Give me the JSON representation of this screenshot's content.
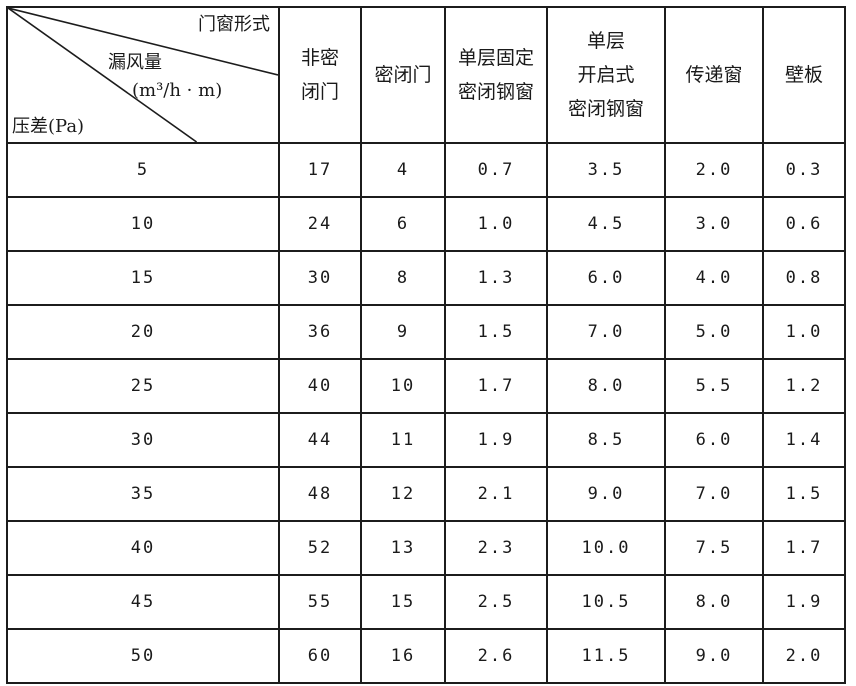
{
  "table": {
    "corner": {
      "form_label": "门窗形式",
      "leak_label": "漏风量",
      "unit_label": "(m³/h · m)",
      "pressure_label": "压差(Pa)"
    },
    "headers": [
      [
        "非密",
        "闭门"
      ],
      [
        "密闭门"
      ],
      [
        "单层固定",
        "密闭钢窗"
      ],
      [
        "单层",
        "开启式",
        "密闭钢窗"
      ],
      [
        "传递窗"
      ],
      [
        "壁板"
      ]
    ],
    "rows": [
      {
        "pressure": "5",
        "values": [
          "17",
          "4",
          "0.7",
          "3.5",
          "2.0",
          "0.3"
        ]
      },
      {
        "pressure": "10",
        "values": [
          "24",
          "6",
          "1.0",
          "4.5",
          "3.0",
          "0.6"
        ]
      },
      {
        "pressure": "15",
        "values": [
          "30",
          "8",
          "1.3",
          "6.0",
          "4.0",
          "0.8"
        ]
      },
      {
        "pressure": "20",
        "values": [
          "36",
          "9",
          "1.5",
          "7.0",
          "5.0",
          "1.0"
        ]
      },
      {
        "pressure": "25",
        "values": [
          "40",
          "10",
          "1.7",
          "8.0",
          "5.5",
          "1.2"
        ]
      },
      {
        "pressure": "30",
        "values": [
          "44",
          "11",
          "1.9",
          "8.5",
          "6.0",
          "1.4"
        ]
      },
      {
        "pressure": "35",
        "values": [
          "48",
          "12",
          "2.1",
          "9.0",
          "7.0",
          "1.5"
        ]
      },
      {
        "pressure": "40",
        "values": [
          "52",
          "13",
          "2.3",
          "10.0",
          "7.5",
          "1.7"
        ]
      },
      {
        "pressure": "45",
        "values": [
          "55",
          "15",
          "2.5",
          "10.5",
          "8.0",
          "1.9"
        ]
      },
      {
        "pressure": "50",
        "values": [
          "60",
          "16",
          "2.6",
          "11.5",
          "9.0",
          "2.0"
        ]
      }
    ]
  }
}
